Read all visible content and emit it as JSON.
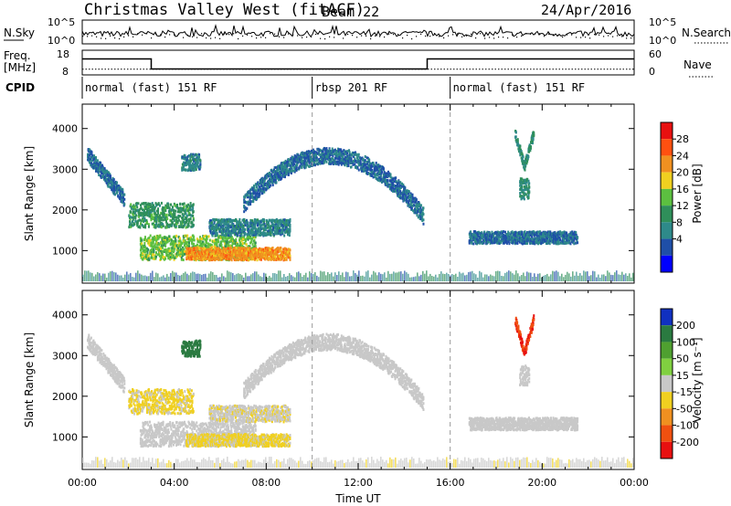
{
  "header": {
    "title": "Christmas Valley West (fitACF)",
    "beam": "Beam 22",
    "date": "24/Apr/2016"
  },
  "noise_panel": {
    "left_label": "N.Sky",
    "right_label": "N.Search",
    "left_ticks": [
      "10^5",
      "10^0"
    ],
    "right_ticks": [
      "10^5",
      "10^0"
    ]
  },
  "freq_panel": {
    "left_label": "Freq.",
    "left_unit": "[MHz]",
    "right_label": "Nave",
    "left_ticks": [
      "18",
      "8"
    ],
    "right_ticks": [
      "60",
      "0"
    ],
    "freq_steps": [
      {
        "start_h": 0,
        "end_h": 3,
        "freq_mhz": 14.5
      },
      {
        "start_h": 3,
        "end_h": 15,
        "freq_mhz": 10.4
      },
      {
        "start_h": 15,
        "end_h": 24,
        "freq_mhz": 14.5
      }
    ],
    "nave_mean": 14
  },
  "cpid": {
    "label": "CPID",
    "segments": [
      {
        "start_h": 0,
        "end_h": 10,
        "text": "normal (fast) 151 RF"
      },
      {
        "start_h": 10,
        "end_h": 16,
        "text": "rbsp 201 RF"
      },
      {
        "start_h": 16,
        "end_h": 24,
        "text": "normal (fast) 151 RF"
      }
    ]
  },
  "chart_data": [
    {
      "type": "heatmap",
      "name": "power",
      "ylabel": "Slant Range [km]",
      "xlabel": "Time UT",
      "xlim": [
        0,
        24
      ],
      "ylim": [
        200,
        4600
      ],
      "yticks": [
        "1000",
        "2000",
        "3000",
        "4000"
      ],
      "colorbar": {
        "label": "Power [dB]",
        "ticks": [
          "4",
          "8",
          "12",
          "16",
          "20",
          "24",
          "28"
        ],
        "colors": [
          "#0000ff",
          "#1f4fa8",
          "#2e8a8a",
          "#2f8f5a",
          "#5cc040",
          "#f0d020",
          "#f09020",
          "#ff5010",
          "#e81010"
        ]
      },
      "regions": [
        {
          "t0": 0.2,
          "t1": 1.8,
          "r0": 2300,
          "r1": 3400,
          "trend": "descending",
          "level": 8
        },
        {
          "t0": 2.0,
          "t1": 4.8,
          "r0": 1600,
          "r1": 2200,
          "trend": "flat",
          "level": 14
        },
        {
          "t0": 2.5,
          "t1": 7.5,
          "r0": 800,
          "r1": 1400,
          "trend": "flat",
          "level": 18
        },
        {
          "t0": 4.5,
          "t1": 9.0,
          "r0": 800,
          "r1": 1100,
          "trend": "flat",
          "level": 26
        },
        {
          "t0": 4.3,
          "t1": 5.1,
          "r0": 3000,
          "r1": 3400,
          "trend": "flat",
          "level": 10
        },
        {
          "t0": 5.5,
          "t1": 9.0,
          "r0": 1400,
          "r1": 1800,
          "trend": "flat",
          "level": 10
        },
        {
          "t0": 7.0,
          "t1": 14.8,
          "r0": 1600,
          "r1": 3500,
          "trend": "arc",
          "level": 8
        },
        {
          "t0": 16.8,
          "t1": 21.5,
          "r0": 1200,
          "r1": 1500,
          "trend": "flat",
          "level": 8
        },
        {
          "t0": 18.8,
          "t1": 19.6,
          "r0": 3100,
          "r1": 3900,
          "trend": "vee",
          "level": 12
        },
        {
          "t0": 19.0,
          "t1": 19.4,
          "r0": 2300,
          "r1": 2800,
          "trend": "flat",
          "level": 12
        }
      ]
    },
    {
      "type": "heatmap",
      "name": "velocity",
      "ylabel": "Slant Range [km]",
      "xlabel": "Time UT",
      "xlim": [
        0,
        24
      ],
      "ylim": [
        200,
        4600
      ],
      "yticks": [
        "1000",
        "2000",
        "3000",
        "4000"
      ],
      "xticks": [
        "00:00",
        "04:00",
        "08:00",
        "12:00",
        "16:00",
        "20:00",
        "00:00"
      ],
      "colorbar": {
        "label": "Velocity [m s⁻¹]",
        "ticks": [
          "200",
          "100",
          "50",
          "15",
          "-15",
          "-50",
          "-100",
          "-200"
        ],
        "colors": [
          "#1030c0",
          "#2a7a40",
          "#4fa030",
          "#80d040",
          "#c8c8c8",
          "#f0d020",
          "#f09020",
          "#f05010",
          "#e81010"
        ]
      },
      "regions": [
        {
          "t0": 0.2,
          "t1": 1.8,
          "r0": 2300,
          "r1": 3400,
          "trend": "descending",
          "level": 0
        },
        {
          "t0": 2.0,
          "t1": 4.8,
          "r0": 1600,
          "r1": 2200,
          "trend": "flat",
          "level": -20
        },
        {
          "t0": 2.5,
          "t1": 7.5,
          "r0": 800,
          "r1": 1400,
          "trend": "flat",
          "level": 0
        },
        {
          "t0": 4.5,
          "t1": 9.0,
          "r0": 800,
          "r1": 1100,
          "trend": "flat",
          "level": -20
        },
        {
          "t0": 4.3,
          "t1": 5.1,
          "r0": 3000,
          "r1": 3400,
          "trend": "flat",
          "level": 150
        },
        {
          "t0": 5.5,
          "t1": 9.0,
          "r0": 1400,
          "r1": 1800,
          "trend": "flat",
          "level": -10
        },
        {
          "t0": 7.0,
          "t1": 14.8,
          "r0": 1600,
          "r1": 3500,
          "trend": "arc",
          "level": 0
        },
        {
          "t0": 16.8,
          "t1": 21.5,
          "r0": 1200,
          "r1": 1500,
          "trend": "flat",
          "level": 0
        },
        {
          "t0": 18.8,
          "t1": 19.6,
          "r0": 3100,
          "r1": 3900,
          "trend": "vee",
          "level": -200
        },
        {
          "t0": 19.0,
          "t1": 19.4,
          "r0": 2300,
          "r1": 2800,
          "trend": "flat",
          "level": 0
        }
      ]
    }
  ]
}
